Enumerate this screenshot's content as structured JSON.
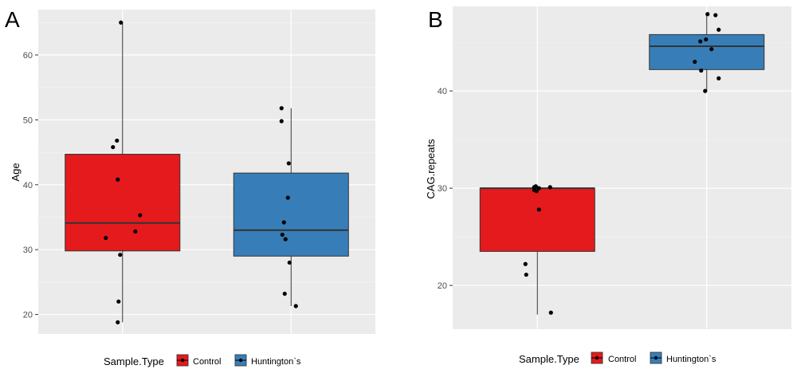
{
  "chart_data": [
    {
      "type": "box",
      "panel_label": "A",
      "ylabel": "Age",
      "xlabel": "",
      "ylim": [
        17,
        67
      ],
      "yticks": [
        20,
        30,
        40,
        50,
        60
      ],
      "grid": true,
      "legend": {
        "title": "Sample.Type",
        "position": "bottom"
      },
      "series": [
        {
          "name": "Control",
          "color": "#E41A1C",
          "box": {
            "whisker_low": 18.8,
            "q1": 29.8,
            "median": 34.1,
            "q3": 44.7,
            "whisker_high": 65
          },
          "points": [
            65,
            46.8,
            45.8,
            40.8,
            35.3,
            32.8,
            31.8,
            29.2,
            22,
            18.8
          ]
        },
        {
          "name": "Huntington`s",
          "color": "#377EB8",
          "box": {
            "whisker_low": 21.3,
            "q1": 29,
            "median": 33,
            "q3": 41.8,
            "whisker_high": 51.8
          },
          "points": [
            51.8,
            49.8,
            43.3,
            38,
            34.2,
            32.3,
            31.6,
            28,
            23.2,
            21.3
          ]
        }
      ]
    },
    {
      "type": "box",
      "panel_label": "B",
      "ylabel": "CAG.repeats",
      "xlabel": "",
      "ylim": [
        15.5,
        48.7
      ],
      "yticks": [
        20,
        30,
        40
      ],
      "grid": true,
      "legend": {
        "title": "Sample.Type",
        "position": "bottom"
      },
      "series": [
        {
          "name": "Control",
          "color": "#E41A1C",
          "box": {
            "whisker_low": 17,
            "q1": 23.5,
            "median": 30,
            "q3": 30,
            "whisker_high": 30
          },
          "points": [
            30.2,
            30.1,
            30,
            29.8,
            29.7,
            30.1,
            27.8,
            22.2,
            21.1,
            17.2
          ]
        },
        {
          "name": "Huntington`s",
          "color": "#377EB8",
          "box": {
            "whisker_low": 40,
            "q1": 42.2,
            "median": 44.6,
            "q3": 45.8,
            "whisker_high": 48
          },
          "points": [
            47.9,
            47.8,
            46.3,
            45.3,
            45.1,
            44.3,
            43,
            42.1,
            41.3,
            40
          ]
        }
      ]
    }
  ]
}
